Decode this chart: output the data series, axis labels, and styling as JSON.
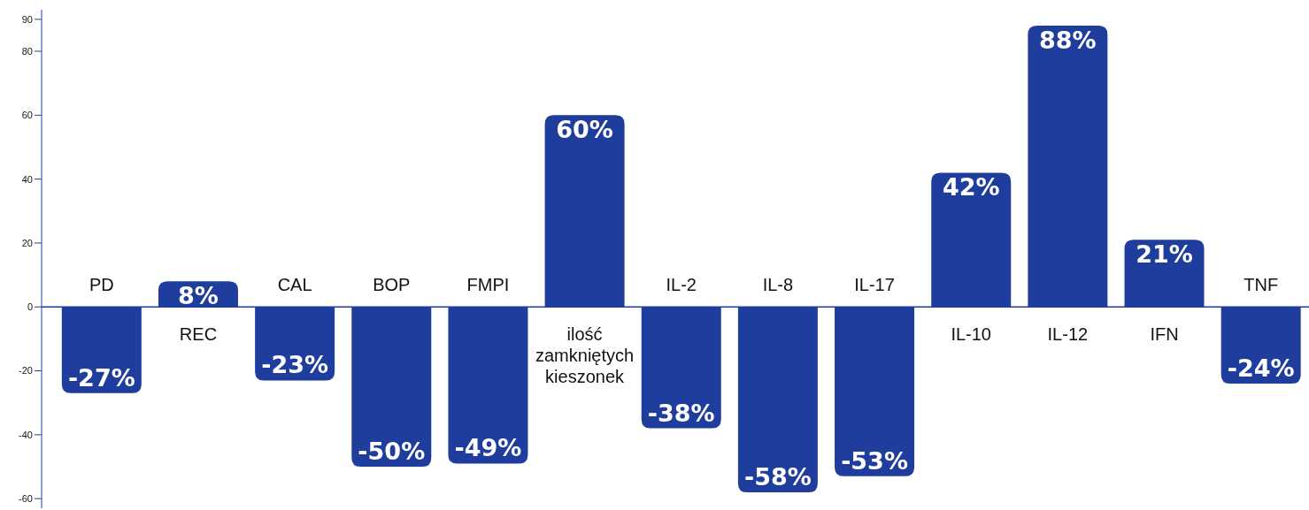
{
  "chart_data": {
    "type": "bar",
    "categories": [
      "PD",
      "REC",
      "CAL",
      "BOP",
      "FMPI",
      "ilość zamkniętych kieszonek",
      "IL-2",
      "IL-8",
      "IL-17",
      "IL-10",
      "IL-12",
      "IFN",
      "TNF"
    ],
    "values": [
      -27,
      8,
      -23,
      -50,
      -49,
      60,
      -38,
      -58,
      -53,
      42,
      88,
      21,
      -24
    ],
    "value_labels": [
      "-27%",
      "8%",
      "-23%",
      "-50%",
      "-49%",
      "60%",
      "-38%",
      "-58%",
      "-53%",
      "42%",
      "88%",
      "21%",
      "-24%"
    ],
    "color": "#1f3d9c",
    "ylim": [
      -63,
      93
    ],
    "yticks": [
      -60,
      -40,
      -20,
      0,
      20,
      40,
      60,
      80,
      90
    ]
  }
}
